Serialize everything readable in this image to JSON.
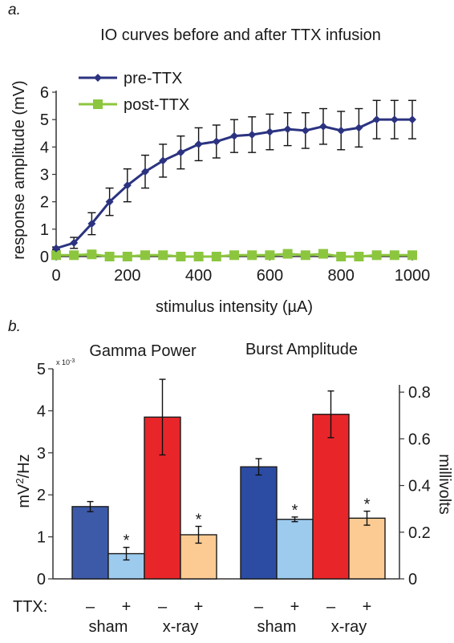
{
  "panel_a": {
    "letter": "a.",
    "chart_data": {
      "type": "line",
      "title": "IO curves before and after TTX infusion",
      "xlabel": "stimulus intensity (µA)",
      "ylabel": "response amplitude (mV)",
      "xlim": [
        0,
        1000
      ],
      "ylim": [
        0,
        6
      ],
      "x_ticks": [
        "0",
        "200",
        "400",
        "600",
        "800",
        "1000"
      ],
      "y_ticks": [
        "0",
        "1",
        "2",
        "3",
        "4",
        "5",
        "6"
      ],
      "legend_position": "top-left",
      "x": [
        0,
        50,
        100,
        150,
        200,
        250,
        300,
        350,
        400,
        450,
        500,
        550,
        600,
        650,
        700,
        750,
        800,
        850,
        900,
        950,
        1000
      ],
      "series": [
        {
          "name": "pre-TTX",
          "color": "#2b3380",
          "marker": "diamond",
          "values": [
            0.3,
            0.5,
            1.2,
            2.0,
            2.6,
            3.1,
            3.5,
            3.8,
            4.1,
            4.2,
            4.4,
            4.45,
            4.55,
            4.65,
            4.6,
            4.75,
            4.6,
            4.7,
            5.0,
            5.0,
            5.0
          ],
          "errors": [
            0.05,
            0.2,
            0.4,
            0.5,
            0.6,
            0.6,
            0.6,
            0.6,
            0.6,
            0.6,
            0.6,
            0.65,
            0.65,
            0.6,
            0.65,
            0.65,
            0.7,
            0.7,
            0.7,
            0.7,
            0.7
          ]
        },
        {
          "name": "post-TTX",
          "color": "#8cc63f",
          "marker": "square",
          "values": [
            0.05,
            0.05,
            0.08,
            0.0,
            0.0,
            0.05,
            0.05,
            0.0,
            0.0,
            0.0,
            0.05,
            0.05,
            0.05,
            0.1,
            0.05,
            0.1,
            0.0,
            0.0,
            0.05,
            0.05,
            0.05
          ],
          "errors": [
            0.03,
            0.03,
            0.03,
            0.03,
            0.03,
            0.03,
            0.03,
            0.03,
            0.03,
            0.03,
            0.03,
            0.03,
            0.03,
            0.03,
            0.03,
            0.03,
            0.03,
            0.03,
            0.03,
            0.03,
            0.03
          ]
        }
      ]
    }
  },
  "panel_b": {
    "letter": "b.",
    "chart_data": {
      "type": "bar",
      "subtitles": [
        "Gamma Power",
        "Burst Amplitude"
      ],
      "ylabel_left": "mV²/Hz",
      "ylabel_left_base": "mV",
      "ylabel_left_sup": "2",
      "ylabel_left_rest": "/Hz",
      "ylabel_right": "millivolts",
      "left_axis_scale_label": "x 10⁻³",
      "left_axis_scale_base": "x 10",
      "left_axis_scale_exp": "-3",
      "ylim_left": [
        0,
        5
      ],
      "ylim_right": [
        0,
        0.9
      ],
      "y_ticks_left": [
        "0",
        "1",
        "2",
        "3",
        "4",
        "5"
      ],
      "y_ticks_right": [
        "0",
        "0.2",
        "0.4",
        "0.6",
        "0.8"
      ],
      "significance_marker": "*",
      "ttx_row_label": "TTX:",
      "groups": [
        {
          "name": "Gamma Power",
          "axis": "left",
          "bars": [
            {
              "condition": "sham",
              "ttx": "–",
              "value": 1.72,
              "error": 0.12,
              "color": "#3d5aa8",
              "significant": false
            },
            {
              "condition": "sham",
              "ttx": "+",
              "value": 0.6,
              "error": 0.15,
              "color": "#9dcbee",
              "significant": true
            },
            {
              "condition": "x-ray",
              "ttx": "–",
              "value": 3.85,
              "error": 0.9,
              "color": "#e8262a",
              "significant": false
            },
            {
              "condition": "x-ray",
              "ttx": "+",
              "value": 1.05,
              "error": 0.2,
              "color": "#fccb93",
              "significant": true
            }
          ],
          "condition_labels": [
            "sham",
            "x-ray"
          ]
        },
        {
          "name": "Burst Amplitude",
          "axis": "right",
          "bars": [
            {
              "condition": "sham",
              "ttx": "–",
              "value": 0.48,
              "error": 0.035,
              "color": "#2c4ca3",
              "significant": false
            },
            {
              "condition": "sham",
              "ttx": "+",
              "value": 0.255,
              "error": 0.01,
              "color": "#9dcbee",
              "significant": true
            },
            {
              "condition": "x-ray",
              "ttx": "–",
              "value": 0.705,
              "error": 0.1,
              "color": "#e8262a",
              "significant": false
            },
            {
              "condition": "x-ray",
              "ttx": "+",
              "value": 0.26,
              "error": 0.03,
              "color": "#fccb93",
              "significant": true
            }
          ],
          "condition_labels": [
            "sham",
            "x-ray"
          ]
        }
      ]
    }
  }
}
